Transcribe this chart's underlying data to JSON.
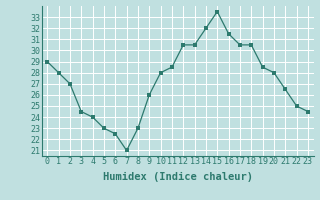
{
  "x": [
    0,
    1,
    2,
    3,
    4,
    5,
    6,
    7,
    8,
    9,
    10,
    11,
    12,
    13,
    14,
    15,
    16,
    17,
    18,
    19,
    20,
    21,
    22,
    23
  ],
  "y": [
    29,
    28,
    27,
    24.5,
    24,
    23,
    22.5,
    21,
    23,
    26,
    28,
    28.5,
    30.5,
    30.5,
    32,
    33.5,
    31.5,
    30.5,
    30.5,
    28.5,
    28,
    26.5,
    25,
    24.5
  ],
  "line_color": "#2d7a6e",
  "marker_color": "#2d7a6e",
  "bg_color": "#c0e0e0",
  "grid_color": "#ffffff",
  "xlabel": "Humidex (Indice chaleur)",
  "xlim": [
    -0.5,
    23.5
  ],
  "ylim": [
    20.5,
    34
  ],
  "yticks": [
    21,
    22,
    23,
    24,
    25,
    26,
    27,
    28,
    29,
    30,
    31,
    32,
    33
  ],
  "xticks": [
    0,
    1,
    2,
    3,
    4,
    5,
    6,
    7,
    8,
    9,
    10,
    11,
    12,
    13,
    14,
    15,
    16,
    17,
    18,
    19,
    20,
    21,
    22,
    23
  ],
  "label_color": "#2d7a6e",
  "tick_color": "#2d7a6e",
  "font_size": 6,
  "xlabel_fontsize": 7.5
}
